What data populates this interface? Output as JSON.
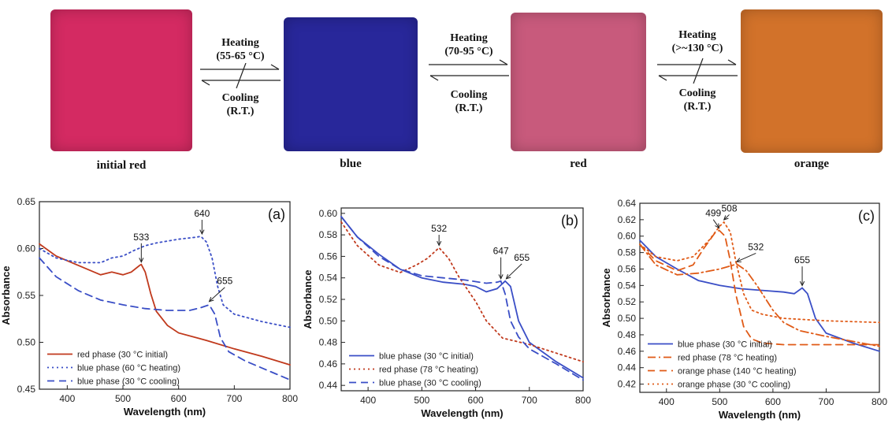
{
  "samples": [
    {
      "label": "initial red",
      "color": "#d42a62"
    },
    {
      "label": "blue",
      "color": "#28279a"
    },
    {
      "label": "red",
      "color": "#c85a7c"
    },
    {
      "label": "orange",
      "color": "#d2722a"
    }
  ],
  "transitions": [
    {
      "heat": "Heating",
      "heat_temp": "(55-65 °C)",
      "cool": "Cooling",
      "cool_temp": "(R.T.)"
    },
    {
      "heat": "Heating",
      "heat_temp": "(70-95 °C)",
      "cool": "Cooling",
      "cool_temp": "(R.T.)"
    },
    {
      "heat": "Heating",
      "heat_temp": "(>~130 °C)",
      "cool": "Cooling",
      "cool_temp": "(R.T.)"
    }
  ],
  "colors": {
    "red": "#c0391c",
    "blue": "#3a4ec6",
    "orange": "#e05a16"
  },
  "chart_data": [
    {
      "panel": "(a)",
      "type": "line",
      "xlabel": "Wavelength (nm)",
      "ylabel": "Absorbance",
      "xlim": [
        350,
        800
      ],
      "ylim": [
        0.45,
        0.65
      ],
      "xticks": [
        400,
        500,
        600,
        700,
        800
      ],
      "yticks": [
        0.45,
        0.5,
        0.55,
        0.6,
        0.65
      ],
      "ytick_labels": [
        "0.45",
        "0.50",
        "0.55",
        "0.60",
        "0.65"
      ],
      "legend_position": "bottom-left",
      "series": [
        {
          "name": "red phase (30 °C initial)",
          "style": "solid",
          "color": "red",
          "x": [
            350,
            380,
            420,
            460,
            480,
            500,
            515,
            530,
            533,
            540,
            550,
            560,
            580,
            600,
            650,
            700,
            750,
            800
          ],
          "y": [
            0.605,
            0.592,
            0.582,
            0.572,
            0.575,
            0.572,
            0.575,
            0.582,
            0.583,
            0.575,
            0.552,
            0.533,
            0.518,
            0.51,
            0.502,
            0.493,
            0.485,
            0.476
          ]
        },
        {
          "name": "blue phase (60 °C heating)",
          "style": "dotted",
          "color": "blue",
          "x": [
            350,
            380,
            420,
            460,
            480,
            500,
            520,
            540,
            560,
            600,
            630,
            640,
            650,
            660,
            670,
            680,
            700,
            750,
            800
          ],
          "y": [
            0.6,
            0.59,
            0.585,
            0.585,
            0.59,
            0.592,
            0.598,
            0.603,
            0.606,
            0.61,
            0.612,
            0.613,
            0.607,
            0.59,
            0.56,
            0.54,
            0.53,
            0.522,
            0.516
          ]
        },
        {
          "name": "blue phase (30 °C cooling)",
          "style": "dashed",
          "color": "blue",
          "x": [
            350,
            380,
            420,
            460,
            500,
            540,
            580,
            620,
            640,
            655,
            665,
            675,
            690,
            720,
            760,
            800
          ],
          "y": [
            0.59,
            0.57,
            0.555,
            0.545,
            0.54,
            0.536,
            0.534,
            0.534,
            0.537,
            0.54,
            0.53,
            0.505,
            0.49,
            0.48,
            0.47,
            0.46
          ]
        }
      ],
      "annotations": [
        {
          "text": "533",
          "x": 533,
          "y": 0.583,
          "label_x": 533,
          "label_y": 0.609
        },
        {
          "text": "640",
          "x": 642,
          "y": 0.613,
          "label_x": 642,
          "label_y": 0.634
        },
        {
          "text": "655",
          "x": 655,
          "y": 0.541,
          "label_x": 683,
          "label_y": 0.562
        }
      ]
    },
    {
      "panel": "(b)",
      "type": "line",
      "xlabel": "Wavelength (nm)",
      "ylabel": "Absorbance",
      "xlim": [
        350,
        800
      ],
      "ylim": [
        0.435,
        0.605
      ],
      "xticks": [
        400,
        500,
        600,
        700,
        800
      ],
      "yticks": [
        0.44,
        0.46,
        0.48,
        0.5,
        0.52,
        0.54,
        0.56,
        0.58,
        0.6
      ],
      "ytick_labels": [
        "0.44",
        "0.46",
        "0.48",
        "0.50",
        "0.52",
        "0.54",
        "0.56",
        "0.58",
        "0.60"
      ],
      "legend_position": "bottom-left",
      "series": [
        {
          "name": "blue phase (30 °C initial)",
          "style": "solid",
          "color": "blue",
          "x": [
            350,
            380,
            420,
            460,
            500,
            540,
            580,
            600,
            620,
            640,
            655,
            665,
            680,
            700,
            750,
            800
          ],
          "y": [
            0.597,
            0.578,
            0.562,
            0.548,
            0.54,
            0.536,
            0.534,
            0.532,
            0.527,
            0.53,
            0.537,
            0.532,
            0.5,
            0.48,
            0.462,
            0.447
          ]
        },
        {
          "name": "red phase (78 °C heating)",
          "style": "dotted",
          "color": "red",
          "x": [
            350,
            380,
            420,
            460,
            490,
            510,
            532,
            550,
            570,
            600,
            620,
            650,
            700,
            750,
            800
          ],
          "y": [
            0.592,
            0.57,
            0.552,
            0.545,
            0.552,
            0.558,
            0.568,
            0.558,
            0.54,
            0.518,
            0.5,
            0.484,
            0.478,
            0.47,
            0.462
          ]
        },
        {
          "name": "blue phase (30 °C cooling)",
          "style": "dashed",
          "color": "blue",
          "x": [
            350,
            380,
            420,
            460,
            500,
            540,
            580,
            620,
            640,
            647,
            655,
            665,
            680,
            700,
            750,
            800
          ],
          "y": [
            0.597,
            0.578,
            0.56,
            0.548,
            0.542,
            0.54,
            0.538,
            0.535,
            0.536,
            0.537,
            0.525,
            0.5,
            0.485,
            0.474,
            0.46,
            0.445
          ]
        }
      ],
      "annotations": [
        {
          "text": "532",
          "x": 532,
          "y": 0.568,
          "label_x": 532,
          "label_y": 0.583
        },
        {
          "text": "647",
          "x": 647,
          "y": 0.537,
          "label_x": 647,
          "label_y": 0.562
        },
        {
          "text": "655",
          "x": 657,
          "y": 0.537,
          "label_x": 686,
          "label_y": 0.556
        }
      ]
    },
    {
      "panel": "(c)",
      "type": "line",
      "xlabel": "Wavelength (nm)",
      "ylabel": "Absorbance",
      "xlim": [
        350,
        800
      ],
      "ylim": [
        0.41,
        0.64
      ],
      "xticks": [
        400,
        500,
        600,
        700,
        800
      ],
      "yticks": [
        0.42,
        0.44,
        0.46,
        0.48,
        0.5,
        0.52,
        0.54,
        0.56,
        0.58,
        0.6,
        0.62,
        0.64
      ],
      "ytick_labels": [
        "0.42",
        "0.44",
        "0.46",
        "0.48",
        "0.50",
        "0.52",
        "0.54",
        "0.56",
        "0.58",
        "0.60",
        "0.62",
        "0.64"
      ],
      "legend_position": "bottom-left",
      "series": [
        {
          "name": "blue phase (30 °C initial)",
          "style": "solid",
          "color": "blue",
          "x": [
            350,
            380,
            420,
            460,
            500,
            540,
            580,
            620,
            640,
            655,
            665,
            680,
            700,
            750,
            800
          ],
          "y": [
            0.595,
            0.575,
            0.56,
            0.546,
            0.54,
            0.536,
            0.534,
            0.532,
            0.53,
            0.537,
            0.53,
            0.5,
            0.482,
            0.47,
            0.46
          ]
        },
        {
          "name": "red phase (78 °C heating)",
          "style": "dashdot",
          "color": "orange",
          "x": [
            350,
            380,
            420,
            460,
            500,
            532,
            550,
            570,
            600,
            620,
            650,
            700,
            750,
            800
          ],
          "y": [
            0.59,
            0.565,
            0.553,
            0.555,
            0.56,
            0.566,
            0.558,
            0.54,
            0.51,
            0.495,
            0.485,
            0.478,
            0.472,
            0.466
          ]
        },
        {
          "name": "orange phase (140 °C heating)",
          "style": "dashed",
          "color": "orange",
          "x": [
            350,
            380,
            420,
            450,
            470,
            490,
            499,
            510,
            520,
            530,
            545,
            560,
            580,
            620,
            700,
            800
          ],
          "y": [
            0.59,
            0.57,
            0.558,
            0.565,
            0.585,
            0.603,
            0.607,
            0.6,
            0.57,
            0.53,
            0.49,
            0.475,
            0.47,
            0.468,
            0.468,
            0.468
          ]
        },
        {
          "name": "orange phase (30 °C cooling)",
          "style": "dotted",
          "color": "orange",
          "x": [
            350,
            380,
            420,
            450,
            480,
            500,
            508,
            520,
            530,
            545,
            560,
            580,
            620,
            700,
            800
          ],
          "y": [
            0.59,
            0.575,
            0.57,
            0.575,
            0.595,
            0.612,
            0.617,
            0.605,
            0.57,
            0.53,
            0.51,
            0.505,
            0.5,
            0.497,
            0.495
          ]
        }
      ],
      "annotations": [
        {
          "text": "499",
          "x": 499,
          "y": 0.607,
          "label_x": 488,
          "label_y": 0.624
        },
        {
          "text": "508",
          "x": 508,
          "y": 0.617,
          "label_x": 518,
          "label_y": 0.63
        },
        {
          "text": "532",
          "x": 532,
          "y": 0.566,
          "label_x": 568,
          "label_y": 0.583
        },
        {
          "text": "655",
          "x": 655,
          "y": 0.537,
          "label_x": 655,
          "label_y": 0.567
        }
      ]
    }
  ]
}
